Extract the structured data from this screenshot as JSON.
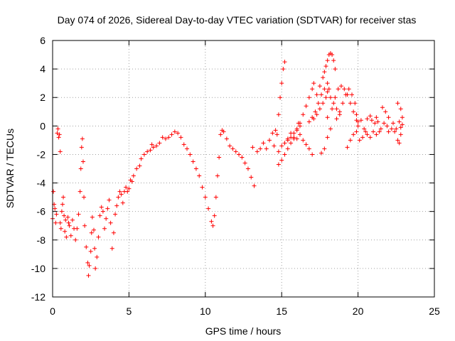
{
  "chart_data": {
    "type": "scatter",
    "title": "Day 074 of 2026, Sidereal Day-to-day VTEC variation (SDTVAR) for receiver stas",
    "xlabel": "GPS time / hours",
    "ylabel": "SDTVAR / TECUs",
    "xlim": [
      0,
      25
    ],
    "ylim": [
      -12,
      6
    ],
    "xticks": [
      0,
      5,
      10,
      15,
      20,
      25
    ],
    "yticks": [
      -12,
      -10,
      -8,
      -6,
      -4,
      -2,
      0,
      2,
      4,
      6
    ],
    "grid": true,
    "marker": "+",
    "series": [
      {
        "name": "SDTVAR",
        "color": "#ff0000",
        "points": [
          [
            0.0,
            -6.5
          ],
          [
            0.05,
            -4.6
          ],
          [
            0.1,
            -5.5
          ],
          [
            0.15,
            -5.8
          ],
          [
            0.2,
            -6.8
          ],
          [
            0.25,
            -6.2
          ],
          [
            0.3,
            -0.5
          ],
          [
            0.35,
            -0.2
          ],
          [
            0.4,
            -0.8
          ],
          [
            0.45,
            -0.6
          ],
          [
            0.5,
            -1.8
          ],
          [
            0.5,
            -6.8
          ],
          [
            0.55,
            -7.2
          ],
          [
            0.6,
            -6.0
          ],
          [
            0.65,
            -5.5
          ],
          [
            0.7,
            -5.0
          ],
          [
            0.75,
            -6.3
          ],
          [
            0.8,
            -7.4
          ],
          [
            0.85,
            -6.6
          ],
          [
            0.9,
            -7.8
          ],
          [
            1.0,
            -6.4
          ],
          [
            1.05,
            -6.8
          ],
          [
            1.1,
            -7.0
          ],
          [
            1.2,
            -7.7
          ],
          [
            1.3,
            -6.6
          ],
          [
            1.4,
            -7.2
          ],
          [
            1.5,
            -8.0
          ],
          [
            1.6,
            -7.2
          ],
          [
            1.7,
            -6.2
          ],
          [
            1.8,
            -4.6
          ],
          [
            1.85,
            -3.0
          ],
          [
            1.9,
            -1.5
          ],
          [
            1.95,
            -0.9
          ],
          [
            2.0,
            -2.5
          ],
          [
            2.05,
            -5.0
          ],
          [
            2.1,
            -7.0
          ],
          [
            2.2,
            -8.5
          ],
          [
            2.3,
            -9.6
          ],
          [
            2.35,
            -10.5
          ],
          [
            2.4,
            -9.8
          ],
          [
            2.5,
            -8.8
          ],
          [
            2.55,
            -7.5
          ],
          [
            2.6,
            -6.4
          ],
          [
            2.7,
            -7.3
          ],
          [
            2.75,
            -8.6
          ],
          [
            2.8,
            -10.0
          ],
          [
            2.9,
            -9.2
          ],
          [
            3.0,
            -7.8
          ],
          [
            3.1,
            -6.3
          ],
          [
            3.2,
            -5.7
          ],
          [
            3.3,
            -6.0
          ],
          [
            3.4,
            -7.2
          ],
          [
            3.5,
            -6.5
          ],
          [
            3.6,
            -5.8
          ],
          [
            3.7,
            -5.2
          ],
          [
            3.8,
            -6.8
          ],
          [
            3.9,
            -8.6
          ],
          [
            4.0,
            -7.5
          ],
          [
            4.1,
            -6.2
          ],
          [
            4.2,
            -5.6
          ],
          [
            4.3,
            -5.0
          ],
          [
            4.4,
            -4.6
          ],
          [
            4.5,
            -4.8
          ],
          [
            4.6,
            -5.4
          ],
          [
            4.7,
            -4.6
          ],
          [
            4.8,
            -4.3
          ],
          [
            4.9,
            -4.6
          ],
          [
            5.0,
            -4.4
          ],
          [
            5.1,
            -3.8
          ],
          [
            5.2,
            -3.9
          ],
          [
            5.3,
            -3.5
          ],
          [
            5.5,
            -3.0
          ],
          [
            5.7,
            -2.8
          ],
          [
            5.8,
            -2.3
          ],
          [
            6.0,
            -2.0
          ],
          [
            6.2,
            -1.8
          ],
          [
            6.4,
            -1.7
          ],
          [
            6.5,
            -1.3
          ],
          [
            6.6,
            -1.5
          ],
          [
            6.8,
            -1.4
          ],
          [
            7.0,
            -1.2
          ],
          [
            7.2,
            -0.8
          ],
          [
            7.4,
            -0.9
          ],
          [
            7.6,
            -0.8
          ],
          [
            7.8,
            -0.6
          ],
          [
            8.0,
            -0.4
          ],
          [
            8.2,
            -0.5
          ],
          [
            8.4,
            -0.8
          ],
          [
            8.6,
            -1.3
          ],
          [
            8.8,
            -1.6
          ],
          [
            9.0,
            -2.0
          ],
          [
            9.2,
            -2.5
          ],
          [
            9.4,
            -3.0
          ],
          [
            9.6,
            -3.5
          ],
          [
            9.8,
            -4.3
          ],
          [
            10.0,
            -5.0
          ],
          [
            10.2,
            -5.8
          ],
          [
            10.4,
            -6.7
          ],
          [
            10.5,
            -7.0
          ],
          [
            10.6,
            -6.3
          ],
          [
            10.7,
            -5.0
          ],
          [
            10.8,
            -3.5
          ],
          [
            10.9,
            -2.2
          ],
          [
            11.0,
            -0.6
          ],
          [
            11.1,
            -0.3
          ],
          [
            11.2,
            -0.4
          ],
          [
            11.4,
            -0.9
          ],
          [
            11.6,
            -1.4
          ],
          [
            11.8,
            -1.6
          ],
          [
            12.0,
            -1.8
          ],
          [
            12.2,
            -2.0
          ],
          [
            12.4,
            -2.2
          ],
          [
            12.6,
            -2.6
          ],
          [
            12.8,
            -3.0
          ],
          [
            13.0,
            -3.6
          ],
          [
            13.2,
            -4.2
          ],
          [
            13.1,
            -1.5
          ],
          [
            13.4,
            -1.8
          ],
          [
            13.6,
            -1.6
          ],
          [
            13.8,
            -1.2
          ],
          [
            14.0,
            -1.6
          ],
          [
            14.2,
            -1.0
          ],
          [
            14.4,
            -0.5
          ],
          [
            14.6,
            -0.3
          ],
          [
            14.7,
            -0.6
          ],
          [
            14.8,
            0.8
          ],
          [
            14.9,
            2.0
          ],
          [
            15.0,
            3.0
          ],
          [
            15.1,
            4.0
          ],
          [
            15.2,
            4.5
          ],
          [
            14.5,
            -1.4
          ],
          [
            14.8,
            -1.8
          ],
          [
            15.0,
            -1.4
          ],
          [
            15.2,
            -1.2
          ],
          [
            15.4,
            -0.9
          ],
          [
            15.6,
            -0.5
          ],
          [
            15.8,
            -0.8
          ],
          [
            16.0,
            -0.2
          ],
          [
            16.1,
            0.2
          ],
          [
            16.2,
            0.0
          ],
          [
            14.8,
            -2.7
          ],
          [
            15.0,
            -2.4
          ],
          [
            15.2,
            -2.0
          ],
          [
            15.4,
            -1.6
          ],
          [
            15.6,
            -1.2
          ],
          [
            15.8,
            -0.9
          ],
          [
            16.0,
            -0.9
          ],
          [
            16.2,
            -0.6
          ],
          [
            16.4,
            -1.0
          ],
          [
            16.6,
            -1.3
          ],
          [
            16.8,
            -1.6
          ],
          [
            17.0,
            -2.0
          ],
          [
            15.4,
            -1.0
          ],
          [
            15.6,
            -0.8
          ],
          [
            15.8,
            -0.5
          ],
          [
            16.0,
            -0.3
          ],
          [
            16.2,
            0.2
          ],
          [
            16.4,
            0.8
          ],
          [
            16.6,
            1.4
          ],
          [
            16.8,
            2.0
          ],
          [
            17.0,
            2.6
          ],
          [
            17.1,
            3.0
          ],
          [
            16.8,
            0.3
          ],
          [
            17.0,
            0.6
          ],
          [
            17.2,
            1.0
          ],
          [
            17.4,
            1.6
          ],
          [
            17.6,
            2.2
          ],
          [
            17.8,
            2.6
          ],
          [
            18.0,
            3.0
          ],
          [
            18.1,
            2.6
          ],
          [
            17.1,
            0.5
          ],
          [
            17.3,
            0.8
          ],
          [
            17.5,
            1.2
          ],
          [
            17.7,
            1.6
          ],
          [
            17.9,
            2.0
          ],
          [
            18.0,
            2.4
          ],
          [
            18.2,
            2.0
          ],
          [
            18.4,
            1.6
          ],
          [
            18.6,
            1.2
          ],
          [
            18.8,
            0.8
          ],
          [
            17.3,
            2.2
          ],
          [
            17.5,
            2.8
          ],
          [
            17.7,
            3.4
          ],
          [
            17.8,
            3.8
          ],
          [
            17.9,
            4.2
          ],
          [
            18.0,
            4.6
          ],
          [
            18.1,
            5.0
          ],
          [
            18.2,
            5.1
          ],
          [
            18.3,
            5.0
          ],
          [
            18.4,
            4.6
          ],
          [
            18.5,
            4.0
          ],
          [
            18.0,
            0.6
          ],
          [
            18.2,
            -0.2
          ],
          [
            18.0,
            -0.8
          ],
          [
            17.8,
            -1.6
          ],
          [
            17.6,
            -1.9
          ],
          [
            18.3,
            1.2
          ],
          [
            18.5,
            2.0
          ],
          [
            18.7,
            2.6
          ],
          [
            18.9,
            2.8
          ],
          [
            19.1,
            2.6
          ],
          [
            19.3,
            2.2
          ],
          [
            19.5,
            1.6
          ],
          [
            19.7,
            1.0
          ],
          [
            19.9,
            0.4
          ],
          [
            18.6,
            0.5
          ],
          [
            18.8,
            1.0
          ],
          [
            19.0,
            1.6
          ],
          [
            19.2,
            2.2
          ],
          [
            19.4,
            2.6
          ],
          [
            19.6,
            2.2
          ],
          [
            19.8,
            1.6
          ],
          [
            19.9,
            0.8
          ],
          [
            20.0,
            0.3
          ],
          [
            19.3,
            -1.5
          ],
          [
            19.5,
            -1.0
          ],
          [
            19.7,
            -0.6
          ],
          [
            19.9,
            -0.4
          ],
          [
            20.0,
            0.0
          ],
          [
            20.2,
            0.4
          ],
          [
            20.4,
            -0.2
          ],
          [
            20.6,
            -0.6
          ],
          [
            20.8,
            -0.8
          ],
          [
            21.0,
            -0.4
          ],
          [
            21.1,
            0.2
          ],
          [
            21.2,
            0.6
          ],
          [
            21.3,
            0.3
          ],
          [
            21.5,
            -0.2
          ],
          [
            21.7,
            0.2
          ],
          [
            21.9,
            0.0
          ],
          [
            22.0,
            -0.4
          ],
          [
            22.2,
            -0.2
          ],
          [
            22.3,
            0.2
          ],
          [
            22.5,
            -0.2
          ],
          [
            22.7,
            0.3
          ],
          [
            22.8,
            -0.1
          ],
          [
            22.9,
            0.1
          ],
          [
            20.6,
            0.5
          ],
          [
            20.8,
            0.7
          ],
          [
            20.9,
            0.4
          ],
          [
            21.6,
            1.3
          ],
          [
            21.8,
            1.0
          ],
          [
            22.0,
            0.6
          ],
          [
            22.4,
            -0.4
          ],
          [
            22.6,
            -1.0
          ],
          [
            22.7,
            -1.2
          ],
          [
            22.8,
            -0.6
          ],
          [
            22.6,
            1.6
          ],
          [
            22.8,
            1.2
          ],
          [
            22.9,
            0.6
          ],
          [
            20.1,
            -1.0
          ],
          [
            20.3,
            -0.8
          ],
          [
            20.5,
            -0.4
          ],
          [
            21.2,
            -0.6
          ],
          [
            21.4,
            -0.4
          ]
        ]
      }
    ]
  }
}
